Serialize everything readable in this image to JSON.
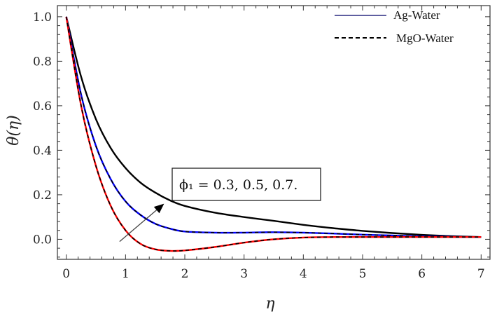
{
  "chart_data": {
    "type": "line",
    "xlabel": "η",
    "ylabel": "θ(η)",
    "xlim": [
      -0.15,
      7.15
    ],
    "ylim": [
      -0.09,
      1.05
    ],
    "xticks": [
      "0",
      "1",
      "2",
      "3",
      "4",
      "5",
      "6",
      "7"
    ],
    "yticks": [
      "0.0",
      "0.2",
      "0.4",
      "0.6",
      "0.8",
      "1.0"
    ],
    "grid": false,
    "legend_position": "top-right",
    "legend": [
      {
        "label": "Ag-Water",
        "style": "solid"
      },
      {
        "label": "MgO-Water",
        "style": "dashed"
      }
    ],
    "annotation": "ϕ₁ = 0.3, 0.5, 0.7.",
    "x": [
      0,
      0.25,
      0.5,
      0.75,
      1.0,
      1.25,
      1.5,
      1.75,
      2.0,
      2.5,
      3.0,
      3.5,
      4.0,
      4.5,
      5.0,
      5.5,
      6.0,
      6.5,
      7.0
    ],
    "series": [
      {
        "color": "#000000",
        "values": [
          1.0,
          0.73,
          0.54,
          0.41,
          0.32,
          0.255,
          0.21,
          0.175,
          0.15,
          0.12,
          0.1,
          0.083,
          0.065,
          0.05,
          0.038,
          0.028,
          0.02,
          0.014,
          0.01
        ]
      },
      {
        "color": "#0000ff",
        "values": [
          1.0,
          0.65,
          0.42,
          0.27,
          0.17,
          0.11,
          0.07,
          0.048,
          0.035,
          0.03,
          0.03,
          0.032,
          0.03,
          0.026,
          0.021,
          0.017,
          0.013,
          0.011,
          0.01
        ]
      },
      {
        "color": "#ff0000",
        "values": [
          1.0,
          0.6,
          0.33,
          0.15,
          0.04,
          -0.02,
          -0.045,
          -0.052,
          -0.05,
          -0.035,
          -0.015,
          0.0,
          0.008,
          0.01,
          0.01,
          0.01,
          0.01,
          0.01,
          0.01
        ]
      }
    ],
    "arrow": {
      "from": [
        0.9,
        -0.01
      ],
      "to": [
        1.65,
        0.16
      ]
    }
  }
}
